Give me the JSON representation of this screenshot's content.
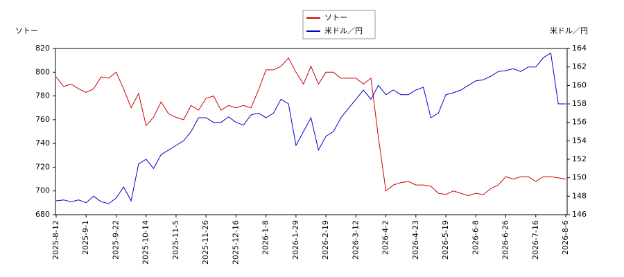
{
  "chart_data": {
    "type": "line",
    "y_label": "ソトー",
    "y2_label": "米ドル／円",
    "categories": [
      "2025-8-12",
      null,
      null,
      null,
      "2025-9-1",
      null,
      null,
      null,
      "2025-9-22",
      null,
      null,
      null,
      "2025-10-14",
      null,
      null,
      null,
      "2025-11-5",
      null,
      null,
      null,
      "2025-11-26",
      null,
      null,
      null,
      "2025-12-16",
      null,
      null,
      null,
      "2026-1-8",
      null,
      null,
      null,
      "2026-1-29",
      null,
      null,
      null,
      "2026-2-19",
      null,
      null,
      null,
      "2026-3-12",
      null,
      null,
      null,
      "2026-4-2",
      null,
      null,
      null,
      "2026-4-23",
      null,
      null,
      null,
      "2026-5-19",
      null,
      null,
      null,
      "2026-6-8",
      null,
      null,
      null,
      "2026-6-26",
      null,
      null,
      null,
      "2026-7-16",
      null,
      null,
      null,
      "2026-8-6"
    ],
    "series": [
      {
        "name": "ソトー",
        "color": "#cc0000",
        "values": [
          796,
          788,
          790,
          786,
          783,
          786,
          796,
          795,
          800,
          786,
          770,
          782,
          755,
          762,
          775,
          765,
          762,
          760,
          772,
          768,
          778,
          780,
          768,
          772,
          770,
          772,
          770,
          785,
          802,
          802,
          805,
          812,
          800,
          790,
          805,
          790,
          800,
          800,
          795,
          795,
          795,
          790,
          795,
          745,
          700,
          705,
          707,
          708,
          705,
          705,
          704,
          698,
          697,
          700,
          698,
          696,
          698,
          697,
          702,
          705,
          712,
          710,
          712,
          712,
          708,
          712,
          712,
          711,
          710
        ]
      },
      {
        "name": "米ドル／円",
        "color": "#0000cc",
        "axis": "y2",
        "values": [
          147.5,
          147.6,
          147.4,
          147.6,
          147.3,
          148.0,
          147.4,
          147.2,
          147.8,
          149.0,
          147.5,
          151.5,
          152.0,
          151.0,
          152.5,
          153.0,
          153.5,
          154.0,
          155.0,
          156.5,
          156.5,
          156.0,
          156.0,
          156.6,
          156.0,
          155.7,
          156.8,
          157.0,
          156.5,
          157.0,
          158.5,
          158.0,
          153.5,
          155.0,
          156.5,
          153.0,
          154.5,
          155.0,
          156.5,
          157.5,
          158.5,
          159.5,
          158.5,
          160.0,
          159.0,
          159.5,
          159.0,
          159.0,
          159.5,
          159.8,
          156.5,
          157.0,
          159.0,
          159.2,
          159.5,
          160.0,
          160.5,
          160.6,
          161.0,
          161.5,
          161.6,
          161.8,
          161.5,
          162.0,
          162.0,
          163.0,
          163.5,
          158.0,
          158.0
        ]
      }
    ],
    "ylim": [
      680,
      820
    ],
    "yticks": [
      680,
      700,
      720,
      740,
      760,
      780,
      800,
      820
    ],
    "y2lim": [
      146,
      164
    ],
    "y2ticks": [
      146,
      148,
      150,
      152,
      154,
      156,
      158,
      160,
      162,
      164
    ],
    "legend": "top"
  }
}
